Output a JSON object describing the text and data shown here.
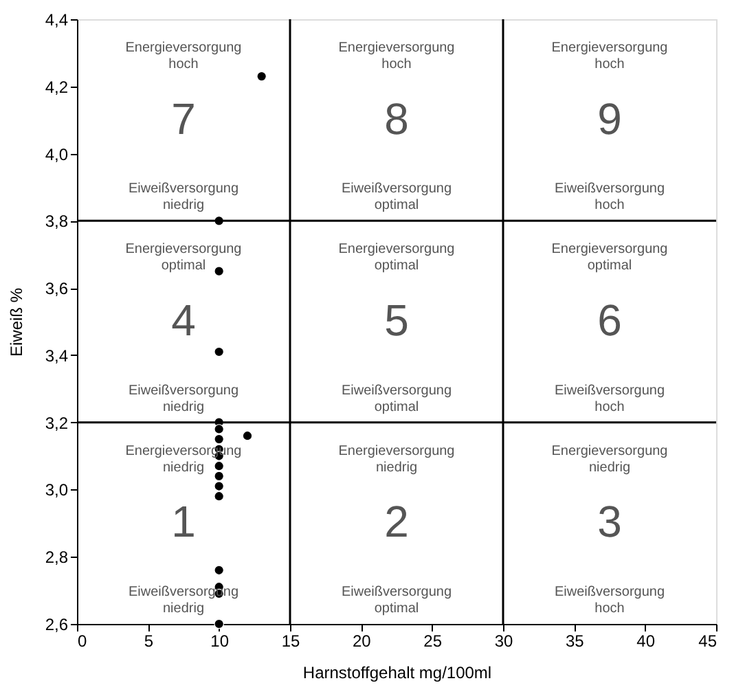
{
  "chart_data": {
    "type": "scatter",
    "xlabel": "Harnstoffgehalt mg/100ml",
    "ylabel": "Eiweiß %",
    "x": [
      13,
      10,
      10,
      10,
      10,
      10,
      10,
      10,
      10,
      10,
      10,
      10,
      10,
      12,
      10,
      10,
      10,
      10
    ],
    "series": [
      {
        "color": "#000000",
        "values": [
          4.23,
          3.8,
          3.65,
          3.41,
          3.2,
          3.18,
          3.15,
          3.12,
          3.1,
          3.07,
          3.04,
          3.01,
          2.98,
          3.16,
          2.76,
          2.71,
          2.69,
          2.6
        ]
      }
    ],
    "marker": "circle",
    "grid": false,
    "xlim": [
      0,
      45
    ],
    "xticks": [
      0,
      5,
      10,
      15,
      20,
      25,
      30,
      35,
      40,
      45
    ],
    "ylim": [
      2.6,
      4.4
    ],
    "yticks": [
      {
        "value": 2.6,
        "label": "2,6"
      },
      {
        "value": 2.8,
        "label": "2,8"
      },
      {
        "value": 3.0,
        "label": "3,0"
      },
      {
        "value": 3.2,
        "label": "3,2"
      },
      {
        "value": 3.4,
        "label": "3,4"
      },
      {
        "value": 3.6,
        "label": "3,6"
      },
      {
        "value": 3.8,
        "label": "3,8"
      },
      {
        "value": 4.0,
        "label": "4,0"
      },
      {
        "value": 4.2,
        "label": "4,2"
      },
      {
        "value": 4.4,
        "label": "4,4"
      }
    ],
    "ref_lines": [
      {
        "axis": "x",
        "value": 15,
        "color": "#000000"
      },
      {
        "axis": "x",
        "value": 30,
        "color": "#000000"
      },
      {
        "axis": "y",
        "value": 3.2,
        "color": "#000000"
      },
      {
        "axis": "y",
        "value": 3.8,
        "color": "#000000"
      }
    ],
    "annotations": [
      "Energieversorgung\nhoch",
      "7",
      "Eiweißversorgung\nniedrig",
      "Energieversorgung\nhoch",
      "8",
      "Eiweißversorgung\noptimal",
      "Energieversorgung\nhoch",
      "9",
      "Eiweißversorgung\nhoch",
      "Energieversorgung\noptimal",
      "4",
      "Eiweißversorgung\nniedrig",
      "Energieversorgung\noptimal",
      "5",
      "Eiweißversorgung\noptimal",
      "Energieversorgung\noptimal",
      "6",
      "Eiweißversorgung\nhoch",
      "Energieversorgung\nniedrig",
      "1",
      "Eiweißversorgung\nniedrig",
      "Energieversorgung\nniedrig",
      "2",
      "Eiweißversorgung\noptimal",
      "Energieversorgung\nniedrig",
      "3",
      "Eiweißversorgung\nhoch"
    ]
  }
}
